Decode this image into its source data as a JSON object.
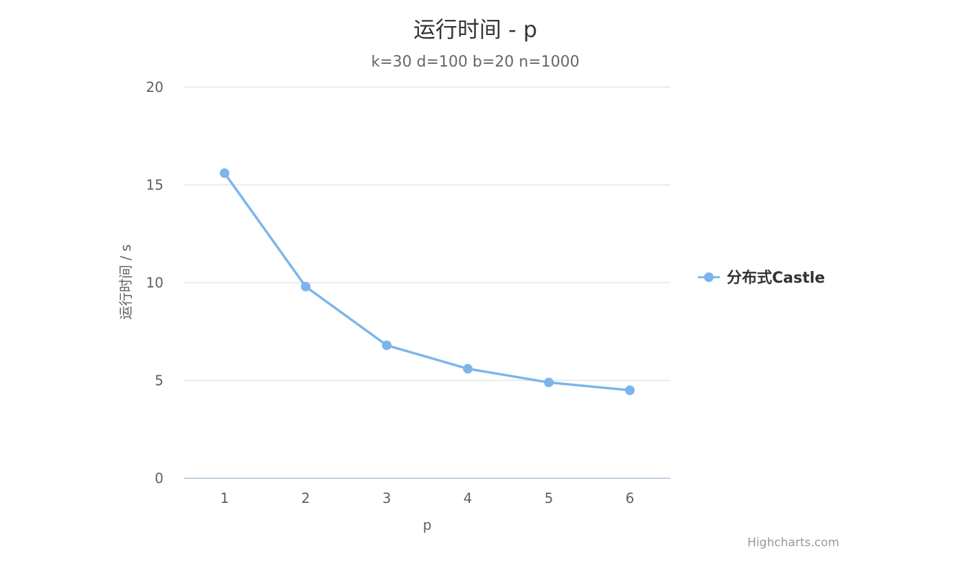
{
  "chart_data": {
    "type": "line",
    "title": "运行时间 - p",
    "subtitle": "k=30 d=100 b=20 n=1000",
    "xlabel": "p",
    "ylabel": "运行时间 / s",
    "categories": [
      "1",
      "2",
      "3",
      "4",
      "5",
      "6"
    ],
    "ylim": [
      0,
      20
    ],
    "yticks": [
      "0",
      "5",
      "10",
      "15",
      "20"
    ],
    "grid": true,
    "legend_position": "right",
    "series": [
      {
        "name": "分布式Castle",
        "color": "#7cb5ec",
        "values": [
          15.6,
          9.8,
          6.8,
          5.6,
          4.9,
          4.5
        ]
      }
    ],
    "credit": "Highcharts.com"
  }
}
